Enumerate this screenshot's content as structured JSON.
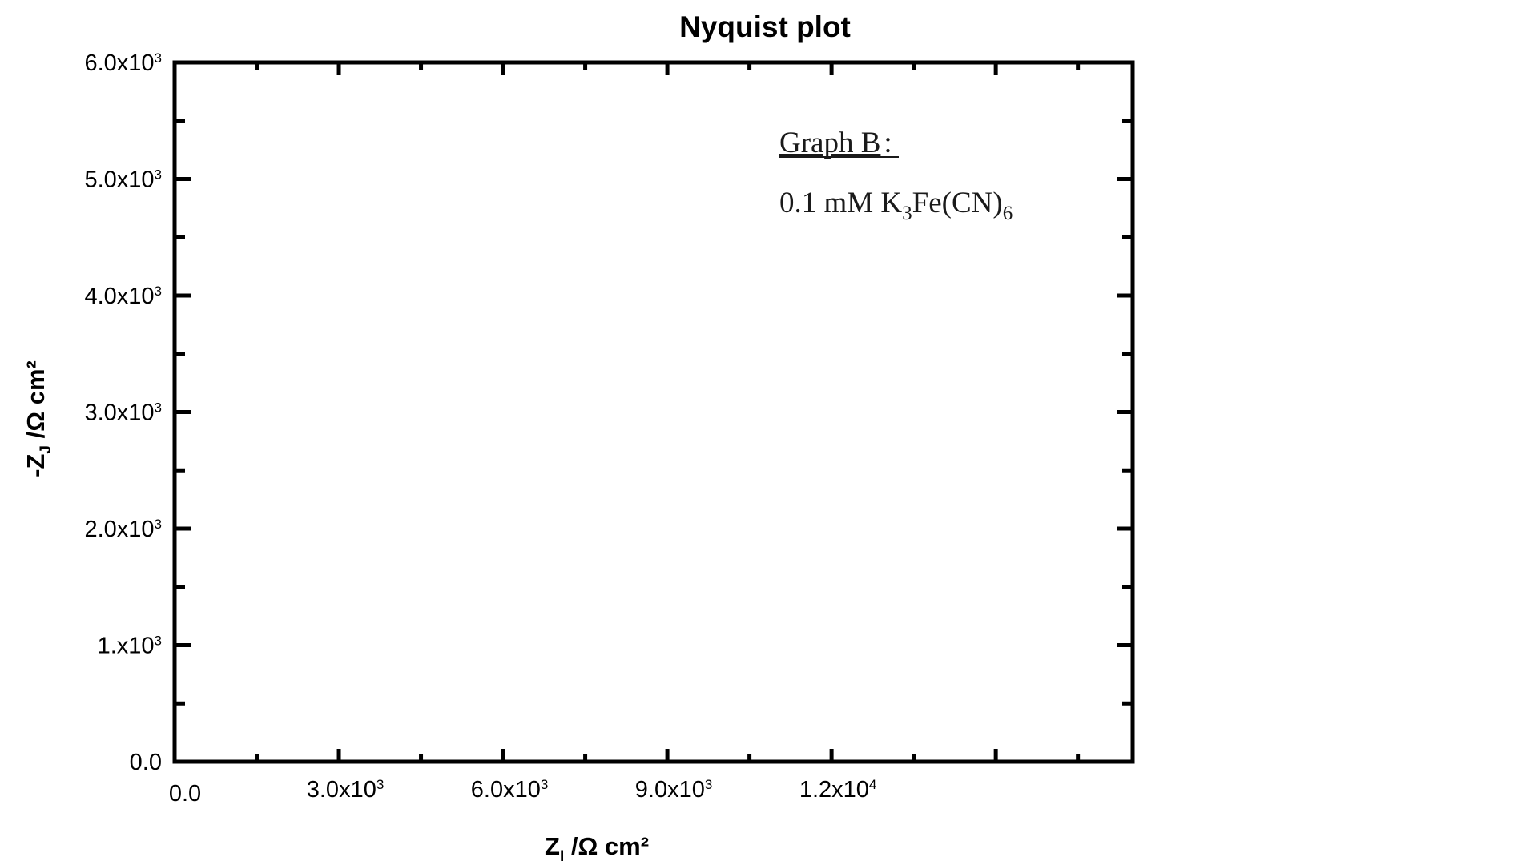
{
  "chart_data": {
    "type": "scatter",
    "title": "Nyquist plot",
    "xlabel": {
      "base": "Z",
      "sub": "I",
      "unit": " /Ω cm²"
    },
    "ylabel": {
      "prefix": "-Z",
      "sub": "J",
      "unit": " /Ω cm²"
    },
    "xlim": [
      0,
      17500
    ],
    "ylim": [
      0,
      6000
    ],
    "x_ticks": [
      {
        "value": 0,
        "mantissa": "0.0",
        "exp": ""
      },
      {
        "value": 3000,
        "mantissa": "3.0x10",
        "exp": "3"
      },
      {
        "value": 6000,
        "mantissa": "6.0x10",
        "exp": "3"
      },
      {
        "value": 9000,
        "mantissa": "9.0x10",
        "exp": "3"
      },
      {
        "value": 12000,
        "mantissa": "1.2x10",
        "exp": "4"
      }
    ],
    "y_ticks": [
      {
        "value": 0,
        "mantissa": "0.0",
        "exp": ""
      },
      {
        "value": 1000,
        "mantissa": "1.x10",
        "exp": "3"
      },
      {
        "value": 2000,
        "mantissa": "2.0x10",
        "exp": "3"
      },
      {
        "value": 3000,
        "mantissa": "3.0x10",
        "exp": "3"
      },
      {
        "value": 4000,
        "mantissa": "4.0x10",
        "exp": "3"
      },
      {
        "value": 5000,
        "mantissa": "5.0x10",
        "exp": "3"
      },
      {
        "value": 6000,
        "mantissa": "6.0x10",
        "exp": "3"
      }
    ],
    "x_major_step": 3000,
    "x_minor_step": 1500,
    "y_major_step": 1000,
    "y_minor_step": 500,
    "grid": false,
    "series": [],
    "annotation": {
      "heading": "Graph B",
      "colon": ":",
      "line2": {
        "prefix": "0.1 mM K",
        "sub1": "3",
        "mid": "Fe(CN)",
        "sub2": "6"
      }
    }
  }
}
